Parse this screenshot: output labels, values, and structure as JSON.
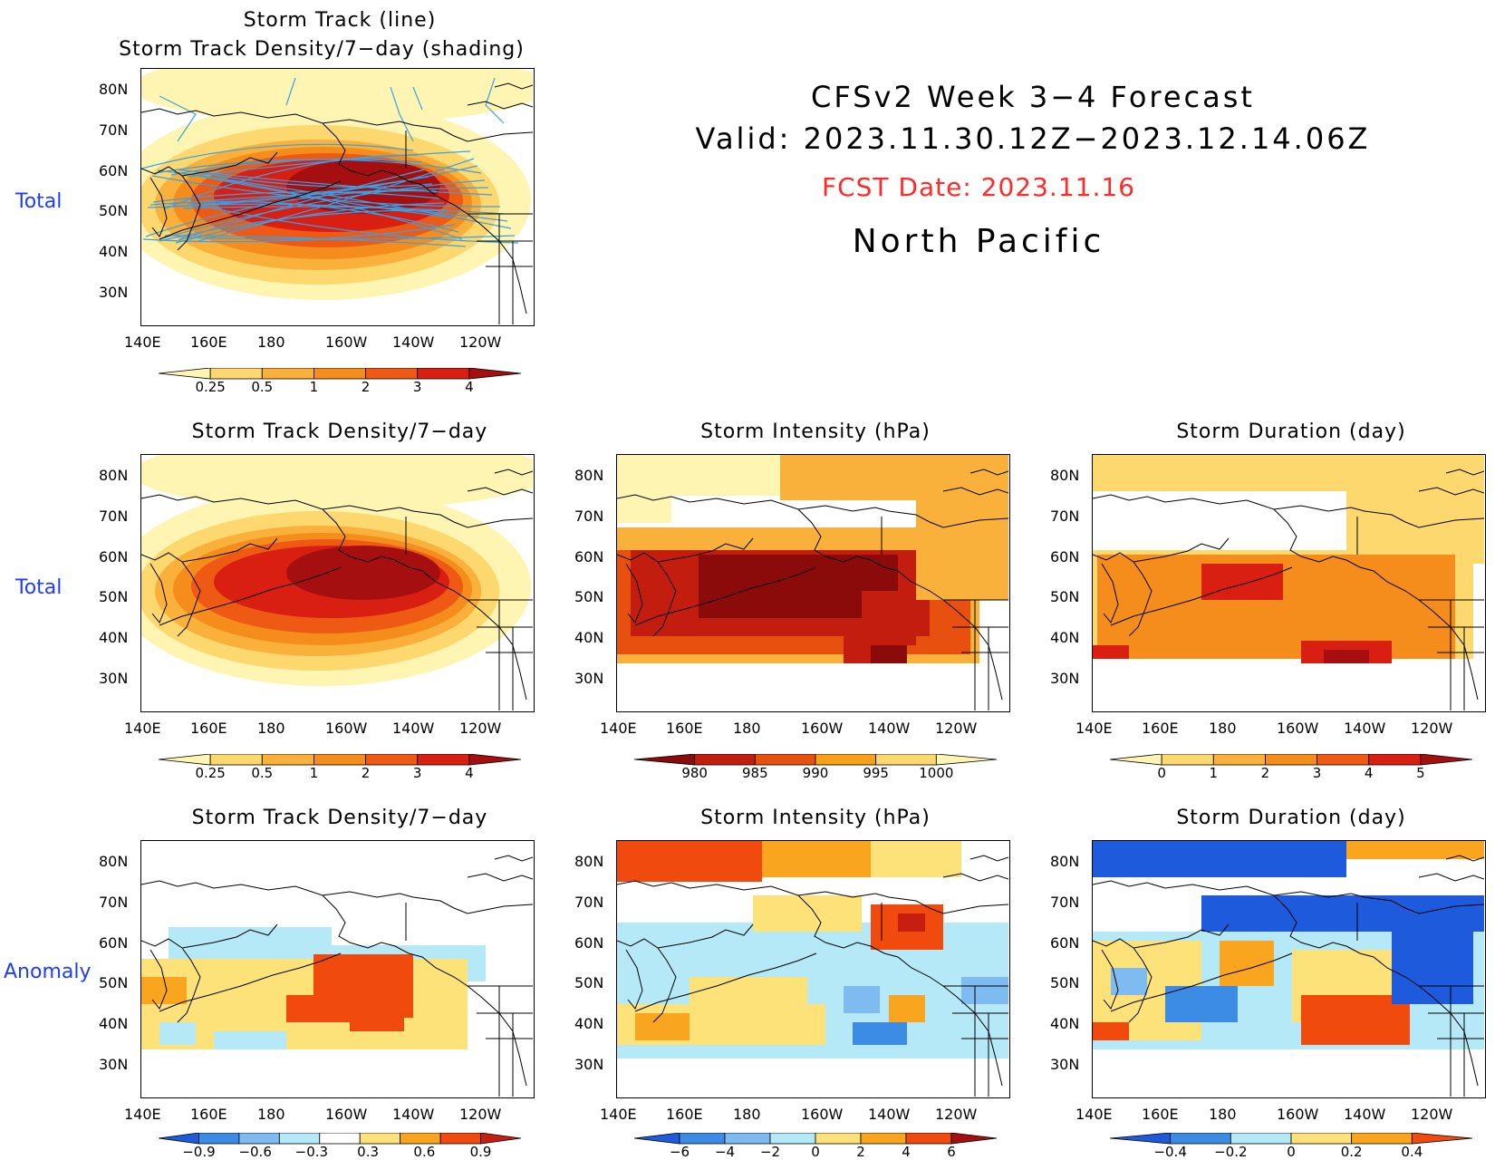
{
  "header": {
    "line1": "CFSv2 Week 3−4 Forecast",
    "line2": "Valid: 2023.11.30.12Z−2023.12.14.06Z",
    "fcst": "FCST Date: 2023.11.16",
    "region": "North Pacific"
  },
  "row_labels": {
    "row1": "Total",
    "row2": "Total",
    "row3": "Anomaly"
  },
  "panels": {
    "p0": {
      "title_line1": "Storm Track (line)",
      "title_line2": "Storm Track Density/7−day (shading)"
    },
    "p1": {
      "title": "Storm Track Density/7−day"
    },
    "p2": {
      "title": "Storm Intensity (hPa)"
    },
    "p3": {
      "title": "Storm Duration (day)"
    },
    "p4": {
      "title": "Storm Track Density/7−day"
    },
    "p5": {
      "title": "Storm Intensity (hPa)"
    },
    "p6": {
      "title": "Storm Duration (day)"
    }
  },
  "axes": {
    "lat_ticks": [
      "80N",
      "70N",
      "60N",
      "50N",
      "40N",
      "30N"
    ],
    "lon_ticks": [
      "140E",
      "160E",
      "180",
      "160W",
      "140W",
      "120W"
    ]
  },
  "colorbars": {
    "density": {
      "labels": [
        "0.25",
        "0.5",
        "1",
        "2",
        "3",
        "4"
      ],
      "colors": [
        "#fff5b3",
        "#fdd86e",
        "#f9b13b",
        "#f48d1c",
        "#ee5a14",
        "#d91e12",
        "#a50f0f"
      ]
    },
    "intensity": {
      "labels": [
        "980",
        "985",
        "990",
        "995",
        "1000"
      ],
      "colors": [
        "#8b0a0a",
        "#c21d0f",
        "#e8500f",
        "#f7a11b",
        "#fdd86e",
        "#fff5b3"
      ]
    },
    "duration": {
      "labels": [
        "0",
        "1",
        "2",
        "3",
        "4",
        "5"
      ],
      "colors": [
        "#fff5b3",
        "#fdd86e",
        "#f9b13b",
        "#f48d1c",
        "#ee5a14",
        "#d91e12",
        "#a50f0f"
      ]
    },
    "density_anom": {
      "labels": [
        "−0.9",
        "−0.6",
        "−0.3",
        "0.3",
        "0.6",
        "0.9"
      ],
      "colors": [
        "#1e5adc",
        "#3c8ce6",
        "#7dbbf0",
        "#b5e9f7",
        "#ffffff",
        "#fde27a",
        "#f9a51f",
        "#f14a0f",
        "#c81e0f"
      ]
    },
    "intensity_anom": {
      "labels": [
        "−6",
        "−4",
        "−2",
        "0",
        "2",
        "4",
        "6"
      ],
      "colors": [
        "#1e5adc",
        "#3c8ce6",
        "#7dbbf0",
        "#b5e9f7",
        "#fde27a",
        "#f9a51f",
        "#f14a0f",
        "#a50f0f"
      ]
    },
    "duration_anom": {
      "labels": [
        "−0.4",
        "−0.2",
        "0",
        "0.2",
        "0.4"
      ],
      "colors": [
        "#1e5adc",
        "#3c8ce6",
        "#b5e9f7",
        "#fde27a",
        "#f9a51f",
        "#f14a0f"
      ]
    }
  }
}
